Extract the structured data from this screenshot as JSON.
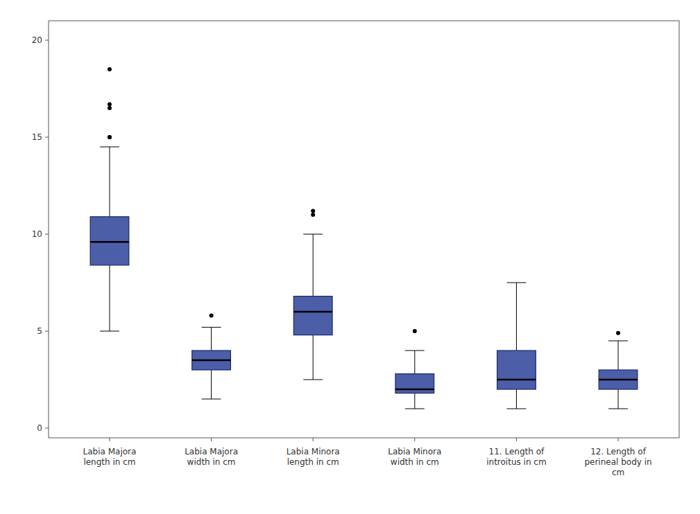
{
  "chart_data": {
    "type": "box",
    "categories": [
      "Labia Majora\nlength in cm",
      "Labia Majora\nwidth in cm",
      "Labia Minora\nlength in cm",
      "Labia Minora\nwidth in cm",
      "11. Length of\nintroitus in cm",
      "12. Length of\nperineal body in\ncm"
    ],
    "values": [
      {
        "whislo": 5.0,
        "q1": 8.4,
        "med": 9.6,
        "q3": 10.9,
        "whishi": 14.5,
        "fliers": [
          15.0,
          15.0,
          16.5,
          16.7,
          18.5
        ]
      },
      {
        "whislo": 1.5,
        "q1": 3.0,
        "med": 3.5,
        "q3": 4.0,
        "whishi": 5.2,
        "fliers": [
          5.8
        ]
      },
      {
        "whislo": 2.5,
        "q1": 4.8,
        "med": 6.0,
        "q3": 6.8,
        "whishi": 10.0,
        "fliers": [
          11.0,
          11.2
        ]
      },
      {
        "whislo": 1.0,
        "q1": 1.8,
        "med": 2.0,
        "q3": 2.8,
        "whishi": 4.0,
        "fliers": [
          5.0
        ]
      },
      {
        "whislo": 1.0,
        "q1": 2.0,
        "med": 2.5,
        "q3": 4.0,
        "whishi": 7.5,
        "fliers": []
      },
      {
        "whislo": 1.0,
        "q1": 2.0,
        "med": 2.5,
        "q3": 3.0,
        "whishi": 4.5,
        "fliers": [
          4.9
        ]
      }
    ],
    "color": "#4C5EA8",
    "ylim": [
      -0.5,
      21.0
    ],
    "yticks": [
      0,
      5,
      10,
      15,
      20
    ],
    "grid": false
  }
}
